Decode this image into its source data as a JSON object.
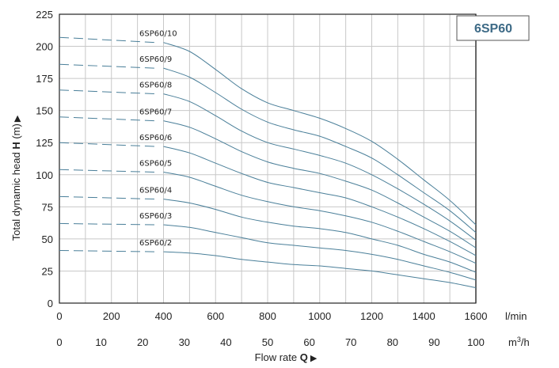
{
  "chart_data": {
    "type": "line",
    "badge": "6SP60",
    "ylabel_prefix": "Total dynamic head ",
    "ylabel_bold": "H",
    "ylabel_suffix": " (m)",
    "ylabel_arrow": "▶",
    "xlabel_prefix": "Flow rate ",
    "xlabel_bold": "Q",
    "xlabel_arrow": "▶",
    "x_unit": "l/min",
    "x2_unit": "m",
    "x2_unit_sup": "3",
    "x2_unit_tail": "/h",
    "xlim": [
      0,
      1600
    ],
    "ylim": [
      0,
      225
    ],
    "y_ticks": [
      0,
      25,
      50,
      75,
      100,
      125,
      150,
      175,
      200,
      225
    ],
    "x_ticks": [
      0,
      200,
      400,
      600,
      800,
      1000,
      1200,
      1400,
      1600
    ],
    "x2_ticks": [
      0,
      10,
      20,
      30,
      40,
      50,
      60,
      70,
      80,
      90,
      100
    ],
    "grid": true,
    "line_color": "#4a7f99",
    "series": [
      {
        "name": "6SP60/10",
        "dashed": {
          "x": [
            0,
            400
          ],
          "y": [
            207,
            203
          ]
        },
        "x": [
          400,
          500,
          600,
          700,
          800,
          900,
          1000,
          1100,
          1200,
          1300,
          1400,
          1500,
          1600
        ],
        "y": [
          203,
          196,
          182,
          167,
          156,
          150,
          144,
          136,
          126,
          112,
          96,
          80,
          61
        ]
      },
      {
        "name": "6SP60/9",
        "dashed": {
          "x": [
            0,
            400
          ],
          "y": [
            186,
            183
          ]
        },
        "x": [
          400,
          500,
          600,
          700,
          800,
          900,
          1000,
          1100,
          1200,
          1300,
          1400,
          1500,
          1600
        ],
        "y": [
          183,
          176,
          164,
          151,
          141,
          135,
          130,
          122,
          113,
          100,
          86,
          72,
          55
        ]
      },
      {
        "name": "6SP60/8",
        "dashed": {
          "x": [
            0,
            400
          ],
          "y": [
            166,
            163
          ]
        },
        "x": [
          400,
          500,
          600,
          700,
          800,
          900,
          1000,
          1100,
          1200,
          1300,
          1400,
          1500,
          1600
        ],
        "y": [
          163,
          157,
          146,
          134,
          125,
          120,
          115,
          109,
          100,
          89,
          77,
          64,
          49
        ]
      },
      {
        "name": "6SP60/7",
        "dashed": {
          "x": [
            0,
            400
          ],
          "y": [
            145,
            142
          ]
        },
        "x": [
          400,
          500,
          600,
          700,
          800,
          900,
          1000,
          1100,
          1200,
          1300,
          1400,
          1500,
          1600
        ],
        "y": [
          142,
          137,
          128,
          118,
          110,
          105,
          101,
          95,
          88,
          78,
          67,
          56,
          43
        ]
      },
      {
        "name": "6SP60/6",
        "dashed": {
          "x": [
            0,
            400
          ],
          "y": [
            125,
            122
          ]
        },
        "x": [
          400,
          500,
          600,
          700,
          800,
          900,
          1000,
          1100,
          1200,
          1300,
          1400,
          1500,
          1600
        ],
        "y": [
          122,
          117,
          109,
          101,
          94,
          90,
          86,
          82,
          75,
          67,
          58,
          48,
          37
        ]
      },
      {
        "name": "6SP60/5",
        "dashed": {
          "x": [
            0,
            400
          ],
          "y": [
            104,
            102
          ]
        },
        "x": [
          400,
          500,
          600,
          700,
          800,
          900,
          1000,
          1100,
          1200,
          1300,
          1400,
          1500,
          1600
        ],
        "y": [
          102,
          98,
          91,
          84,
          79,
          75,
          72,
          68,
          63,
          56,
          48,
          40,
          31
        ]
      },
      {
        "name": "6SP60/4",
        "dashed": {
          "x": [
            0,
            400
          ],
          "y": [
            83,
            81
          ]
        },
        "x": [
          400,
          500,
          600,
          700,
          800,
          900,
          1000,
          1100,
          1200,
          1300,
          1400,
          1500,
          1600
        ],
        "y": [
          81,
          78,
          73,
          67,
          63,
          60,
          58,
          55,
          50,
          45,
          38,
          32,
          24
        ]
      },
      {
        "name": "6SP60/3",
        "dashed": {
          "x": [
            0,
            400
          ],
          "y": [
            62,
            61
          ]
        },
        "x": [
          400,
          500,
          600,
          700,
          800,
          900,
          1000,
          1100,
          1200,
          1300,
          1400,
          1500,
          1600
        ],
        "y": [
          61,
          59,
          55,
          51,
          47,
          45,
          43,
          41,
          38,
          34,
          29,
          24,
          18
        ]
      },
      {
        "name": "6SP60/2",
        "dashed": {
          "x": [
            0,
            400
          ],
          "y": [
            41,
            40
          ]
        },
        "x": [
          400,
          500,
          600,
          700,
          800,
          900,
          1000,
          1100,
          1200,
          1300,
          1400,
          1500,
          1600
        ],
        "y": [
          40,
          39,
          37,
          34,
          32,
          30,
          29,
          27,
          25,
          22,
          19,
          16,
          12
        ]
      }
    ]
  }
}
